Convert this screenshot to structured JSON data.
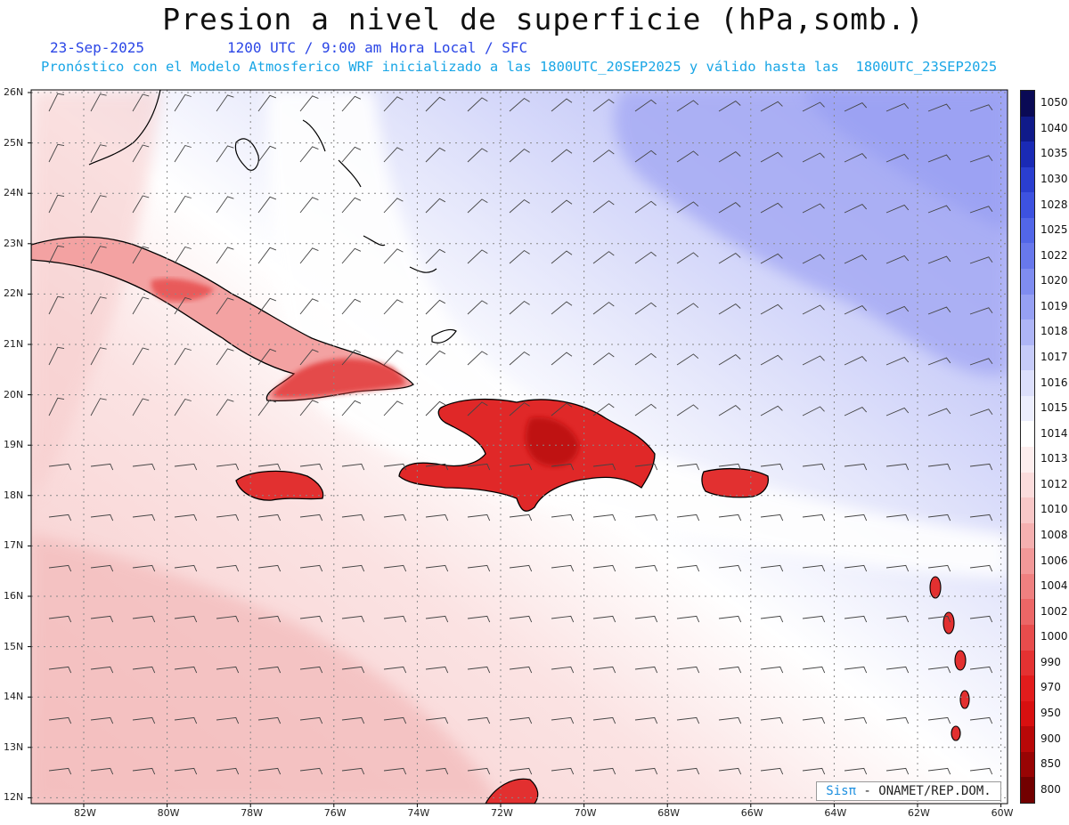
{
  "header": {
    "title": "Presion a nivel de superficie (hPa,somb.)",
    "date": "23-Sep-2025",
    "valid_time": "1200 UTC / 9:00 am Hora Local / SFC",
    "forecast_note": "Pronóstico con el Modelo Atmosferico WRF inicializado a las 1800UTC_20SEP2025 y válido hasta las  1800UTC_23SEP2025"
  },
  "axes": {
    "lat_labels": [
      "26N",
      "25N",
      "24N",
      "23N",
      "22N",
      "21N",
      "20N",
      "19N",
      "18N",
      "17N",
      "16N",
      "15N",
      "14N",
      "13N",
      "12N"
    ],
    "lon_labels": [
      "82W",
      "80W",
      "78W",
      "76W",
      "74W",
      "72W",
      "70W",
      "68W",
      "66W",
      "64W",
      "62W",
      "60W"
    ]
  },
  "colorbar": {
    "levels": [
      "1050",
      "1040",
      "1035",
      "1030",
      "1028",
      "1025",
      "1022",
      "1020",
      "1019",
      "1018",
      "1017",
      "1016",
      "1015",
      "1014",
      "1013",
      "1012",
      "1010",
      "1008",
      "1006",
      "1004",
      "1002",
      "1000",
      "990",
      "970",
      "950",
      "900",
      "850",
      "800"
    ],
    "colors": [
      "#0a0a55",
      "#101a8a",
      "#1a2ab5",
      "#2a3ed0",
      "#3d52e0",
      "#5266e8",
      "#6878ec",
      "#7f8cf0",
      "#96a0f3",
      "#aeb5f6",
      "#c6cbf9",
      "#dcdffb",
      "#eceefd",
      "#ffffff",
      "#fdeeee",
      "#fbdcdc",
      "#f8c7c7",
      "#f5b0b0",
      "#f29898",
      "#ef8080",
      "#ec6666",
      "#e84c4c",
      "#e43232",
      "#e21c1c",
      "#d81010",
      "#b80808",
      "#980404",
      "#720000"
    ]
  },
  "credit": {
    "brand": "Sisπ",
    "text": " - ONAMET/REP.DOM."
  },
  "map": {
    "islands": [
      "Cuba",
      "Jamaica",
      "Hispaniola",
      "Puerto Rico",
      "Bahamas",
      "Lesser Antilles"
    ]
  }
}
